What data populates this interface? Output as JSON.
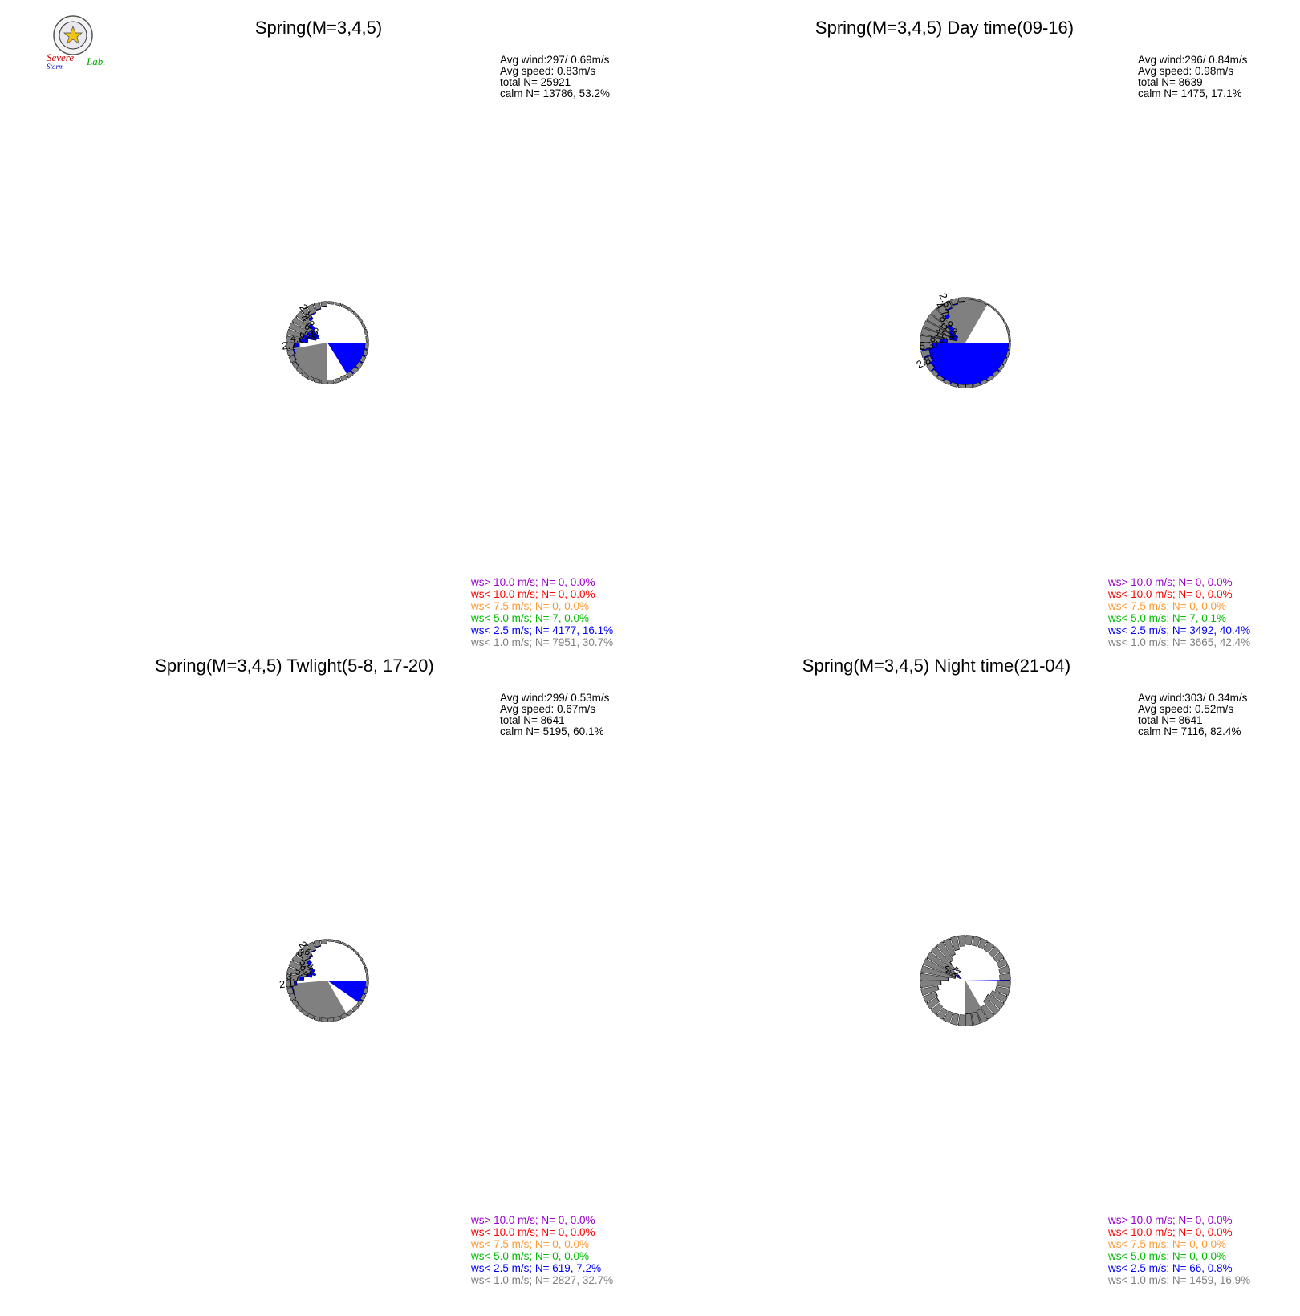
{
  "logo": {
    "text_line1": "Severe",
    "text_line2": "Storm",
    "text_line3": "Lab."
  },
  "legend_colors": {
    "gt10": "#9900cc",
    "lt10": "#ff0000",
    "lt7_5": "#ff9933",
    "lt5": "#00bb00",
    "lt2_5": "#0000ff",
    "lt1": "#808080"
  },
  "chart_data": [
    {
      "type": "polar-bar",
      "title": "Spring(M=3,4,5)",
      "rmax": 9,
      "rings": [
        3,
        6,
        9
      ],
      "stats": {
        "avg_wind": "Avg wind:297/ 0.69m/s",
        "avg_speed": "Avg speed: 0.83m/s",
        "total": "total N=       25921",
        "calm": "calm N=  13786,  53.2%"
      },
      "legend": [
        "ws> 10.0 m/s; N=     0,  0.0%",
        "ws< 10.0 m/s; N=     0,  0.0%",
        "ws<  7.5 m/s; N=     0,  0.0%",
        "ws<  5.0 m/s; N=     7,  0.0%",
        "ws<  2.5 m/s; N=  4177, 16.1%",
        "ws<  1.0 m/s; N=  7951, 30.7%"
      ],
      "bars": [
        {
          "dir": 5,
          "total": 0.3,
          "blue": 0.0
        },
        {
          "dir": 15,
          "total": 0.3,
          "blue": 0.0
        },
        {
          "dir": 25,
          "total": 0.3,
          "blue": 0.0
        },
        {
          "dir": 35,
          "total": 0.3,
          "blue": 0.0
        },
        {
          "dir": 45,
          "total": 0.3,
          "blue": 0.0
        },
        {
          "dir": 55,
          "total": 0.3,
          "blue": 0.0
        },
        {
          "dir": 65,
          "total": 0.3,
          "blue": 0.0
        },
        {
          "dir": 75,
          "total": 0.3,
          "blue": 0.0
        },
        {
          "dir": 85,
          "total": 0.3,
          "blue": 0.0
        },
        {
          "dir": 95,
          "total": 0.5,
          "blue": 0.0
        },
        {
          "dir": 105,
          "total": 0.55,
          "blue": 0.0
        },
        {
          "dir": 115,
          "total": 0.65,
          "blue": 0.0
        },
        {
          "dir": 125,
          "total": 0.75,
          "blue": 0.0
        },
        {
          "dir": 135,
          "total": 0.8,
          "blue": 0.0
        },
        {
          "dir": 145,
          "total": 0.8,
          "blue": 0.0
        },
        {
          "dir": 155,
          "total": 0.75,
          "blue": 0.0
        },
        {
          "dir": 165,
          "total": 0.65,
          "blue": 0.0
        },
        {
          "dir": 175,
          "total": 0.6,
          "blue": 0.0
        },
        {
          "dir": 185,
          "total": 0.55,
          "blue": 0.0
        },
        {
          "dir": 195,
          "total": 0.55,
          "blue": 0.0
        },
        {
          "dir": 205,
          "total": 0.5,
          "blue": 0.0
        },
        {
          "dir": 215,
          "total": 0.5,
          "blue": 0.0
        },
        {
          "dir": 225,
          "total": 0.6,
          "blue": 0.0
        },
        {
          "dir": 235,
          "total": 0.75,
          "blue": 0.1
        },
        {
          "dir": 245,
          "total": 1.05,
          "blue": 0.15
        },
        {
          "dir": 255,
          "total": 1.45,
          "blue": 0.3
        },
        {
          "dir": 265,
          "total": 2.7,
          "blue": 1.2,
          "label": "2.7"
        },
        {
          "dir": 275,
          "total": 4.6,
          "blue": 2.0,
          "label": "4.6"
        },
        {
          "dir": 285,
          "total": 6.4,
          "blue": 2.9,
          "label": "6.4"
        },
        {
          "dir": 295,
          "total": 7.0,
          "blue": 2.9,
          "label": "7.0"
        },
        {
          "dir": 305,
          "total": 6.6,
          "blue": 2.3,
          "label": "6.6"
        },
        {
          "dir": 315,
          "total": 4.8,
          "blue": 1.4,
          "label": "4.8"
        },
        {
          "dir": 325,
          "total": 2.8,
          "blue": 0.6,
          "label": "2.8"
        },
        {
          "dir": 335,
          "total": 1.9,
          "blue": 0.2
        },
        {
          "dir": 345,
          "total": 1.35,
          "blue": 0.15
        },
        {
          "dir": 355,
          "total": 0.85,
          "blue": 0.1
        }
      ]
    },
    {
      "type": "polar-bar",
      "title": "Spring(M=3,4,5) Day time(09-16)",
      "rmax": 15,
      "rings": [
        5,
        10,
        15
      ],
      "stats": {
        "avg_wind": "Avg wind:296/ 0.84m/s",
        "avg_speed": "Avg speed: 0.98m/s",
        "total": "total N=         8639",
        "calm": "calm N=   1475,  17.1%"
      },
      "legend": [
        "ws> 10.0 m/s; N=     0,  0.0%",
        "ws< 10.0 m/s; N=     0,  0.0%",
        "ws<  7.5 m/s; N=     0,  0.0%",
        "ws<  5.0 m/s; N=     7,  0.1%",
        "ws<  2.5 m/s; N=  3492, 40.4%",
        "ws<  1.0 m/s; N=  3665, 42.4%"
      ],
      "bars": [
        {
          "dir": 5,
          "total": 0.2,
          "blue": 0.0
        },
        {
          "dir": 15,
          "total": 0.2,
          "blue": 0.0
        },
        {
          "dir": 25,
          "total": 0.2,
          "blue": 0.0
        },
        {
          "dir": 35,
          "total": 0.2,
          "blue": 0.0
        },
        {
          "dir": 45,
          "total": 0.2,
          "blue": 0.0
        },
        {
          "dir": 55,
          "total": 0.2,
          "blue": 0.0
        },
        {
          "dir": 65,
          "total": 0.2,
          "blue": 0.0
        },
        {
          "dir": 75,
          "total": 0.2,
          "blue": 0.0
        },
        {
          "dir": 85,
          "total": 0.2,
          "blue": 0.0
        },
        {
          "dir": 95,
          "total": 0.3,
          "blue": 0.0
        },
        {
          "dir": 105,
          "total": 0.4,
          "blue": 0.0
        },
        {
          "dir": 115,
          "total": 0.6,
          "blue": 0.0
        },
        {
          "dir": 125,
          "total": 0.7,
          "blue": 0.0
        },
        {
          "dir": 135,
          "total": 0.8,
          "blue": 0.0
        },
        {
          "dir": 145,
          "total": 0.8,
          "blue": 0.0
        },
        {
          "dir": 155,
          "total": 0.75,
          "blue": 0.0
        },
        {
          "dir": 165,
          "total": 0.7,
          "blue": 0.0
        },
        {
          "dir": 175,
          "total": 0.7,
          "blue": 0.0
        },
        {
          "dir": 185,
          "total": 0.7,
          "blue": 0.0
        },
        {
          "dir": 195,
          "total": 0.75,
          "blue": 0.0
        },
        {
          "dir": 205,
          "total": 0.8,
          "blue": 0.0
        },
        {
          "dir": 215,
          "total": 0.9,
          "blue": 0.05
        },
        {
          "dir": 225,
          "total": 1.1,
          "blue": 0.1
        },
        {
          "dir": 235,
          "total": 1.8,
          "blue": 0.3
        },
        {
          "dir": 245,
          "total": 2.8,
          "blue": 0.6,
          "label": "2.8"
        },
        {
          "dir": 255,
          "total": 3.3,
          "blue": 0.9
        },
        {
          "dir": 265,
          "total": 5.3,
          "blue": 1.5,
          "label": "5.3"
        },
        {
          "dir": 275,
          "total": 8.9,
          "blue": 2.5,
          "label": "8.9"
        },
        {
          "dir": 285,
          "total": 11.9,
          "blue": 2.4,
          "label": "11.9"
        },
        {
          "dir": 295,
          "total": 12.1,
          "blue": 2.8,
          "label": "12.1"
        },
        {
          "dir": 305,
          "total": 11.8,
          "blue": 3.4,
          "label": "11.8"
        },
        {
          "dir": 315,
          "total": 8.9,
          "blue": 2.2,
          "label": "8.9"
        },
        {
          "dir": 325,
          "total": 4.7,
          "blue": 1.1,
          "label": "4.7"
        },
        {
          "dir": 335,
          "total": 2.5,
          "blue": 0.4,
          "label": "2.5"
        },
        {
          "dir": 345,
          "total": 1.7,
          "blue": 0.3
        },
        {
          "dir": 355,
          "total": 1.0,
          "blue": 0.1
        }
      ]
    },
    {
      "type": "polar-bar",
      "title": "Spring(M=3,4,5) Twlight(5-8, 17-20)",
      "rmax": 9,
      "rings": [
        3,
        6,
        9
      ],
      "stats": {
        "avg_wind": "Avg wind:299/ 0.53m/s",
        "avg_speed": "Avg speed: 0.67m/s",
        "total": "total N=         8641",
        "calm": "calm N=   5195,  60.1%"
      },
      "legend": [
        "ws> 10.0 m/s; N=     0,  0.0%",
        "ws< 10.0 m/s; N=     0,  0.0%",
        "ws<  7.5 m/s; N=     0,  0.0%",
        "ws<  5.0 m/s; N=     0,  0.0%",
        "ws<  2.5 m/s; N=   619,  7.2%",
        "ws<  1.0 m/s; N=  2827, 32.7%"
      ],
      "bars": [
        {
          "dir": 5,
          "total": 0.2,
          "blue": 0.0
        },
        {
          "dir": 15,
          "total": 0.2,
          "blue": 0.0
        },
        {
          "dir": 25,
          "total": 0.2,
          "blue": 0.0
        },
        {
          "dir": 35,
          "total": 0.2,
          "blue": 0.0
        },
        {
          "dir": 45,
          "total": 0.2,
          "blue": 0.0
        },
        {
          "dir": 55,
          "total": 0.2,
          "blue": 0.0
        },
        {
          "dir": 65,
          "total": 0.2,
          "blue": 0.0
        },
        {
          "dir": 75,
          "total": 0.2,
          "blue": 0.0
        },
        {
          "dir": 85,
          "total": 0.2,
          "blue": 0.0
        },
        {
          "dir": 95,
          "total": 0.4,
          "blue": 0.0
        },
        {
          "dir": 105,
          "total": 0.45,
          "blue": 0.0
        },
        {
          "dir": 115,
          "total": 0.5,
          "blue": 0.0
        },
        {
          "dir": 125,
          "total": 0.55,
          "blue": 0.0
        },
        {
          "dir": 135,
          "total": 0.6,
          "blue": 0.0
        },
        {
          "dir": 145,
          "total": 0.6,
          "blue": 0.0
        },
        {
          "dir": 155,
          "total": 0.6,
          "blue": 0.0
        },
        {
          "dir": 165,
          "total": 0.55,
          "blue": 0.0
        },
        {
          "dir": 175,
          "total": 0.5,
          "blue": 0.0
        },
        {
          "dir": 185,
          "total": 0.5,
          "blue": 0.0
        },
        {
          "dir": 195,
          "total": 0.5,
          "blue": 0.0
        },
        {
          "dir": 205,
          "total": 0.5,
          "blue": 0.0
        },
        {
          "dir": 215,
          "total": 0.5,
          "blue": 0.0
        },
        {
          "dir": 225,
          "total": 0.55,
          "blue": 0.0
        },
        {
          "dir": 235,
          "total": 0.7,
          "blue": 0.05
        },
        {
          "dir": 245,
          "total": 0.95,
          "blue": 0.1
        },
        {
          "dir": 255,
          "total": 1.1,
          "blue": 0.2
        },
        {
          "dir": 265,
          "total": 2.1,
          "blue": 0.6,
          "label": "2.1"
        },
        {
          "dir": 275,
          "total": 3.7,
          "blue": 0.9,
          "label": "3.7"
        },
        {
          "dir": 285,
          "total": 5.4,
          "blue": 1.3,
          "label": "5.4"
        },
        {
          "dir": 295,
          "total": 6.1,
          "blue": 1.5,
          "label": "6.1"
        },
        {
          "dir": 305,
          "total": 5.4,
          "blue": 1.2,
          "label": "5.4"
        },
        {
          "dir": 315,
          "total": 3.7,
          "blue": 0.8,
          "label": "3.7"
        },
        {
          "dir": 325,
          "total": 2.6,
          "blue": 0.4,
          "label": "2.6"
        },
        {
          "dir": 335,
          "total": 1.8,
          "blue": 0.2
        },
        {
          "dir": 345,
          "total": 1.2,
          "blue": 0.15
        },
        {
          "dir": 355,
          "total": 0.75,
          "blue": 0.05
        }
      ]
    },
    {
      "type": "polar-bar",
      "title": "Spring(M=3,4,5) Night time(21-04)",
      "rmax": 3,
      "rings": [
        1,
        2,
        3
      ],
      "stats": {
        "avg_wind": "Avg wind:303/ 0.34m/s",
        "avg_speed": "Avg speed: 0.52m/s",
        "total": "total N=         8641",
        "calm": "calm N=   7116,  82.4%"
      },
      "legend": [
        "ws> 10.0 m/s; N=     0,  0.0%",
        "ws< 10.0 m/s; N=     0,  0.0%",
        "ws<  7.5 m/s; N=     0,  0.0%",
        "ws<  5.0 m/s; N=     0,  0.0%",
        "ws<  2.5 m/s; N=    66,  0.8%",
        "ws<  1.0 m/s; N=  1459, 16.9%"
      ],
      "bars": [
        {
          "dir": 5,
          "total": 0.55,
          "blue": 0.0
        },
        {
          "dir": 15,
          "total": 0.55,
          "blue": 0.0
        },
        {
          "dir": 25,
          "total": 0.55,
          "blue": 0.0
        },
        {
          "dir": 35,
          "total": 0.55,
          "blue": 0.0
        },
        {
          "dir": 45,
          "total": 0.55,
          "blue": 0.0
        },
        {
          "dir": 55,
          "total": 0.55,
          "blue": 0.0
        },
        {
          "dir": 65,
          "total": 0.55,
          "blue": 0.0
        },
        {
          "dir": 75,
          "total": 0.6,
          "blue": 0.0
        },
        {
          "dir": 85,
          "total": 0.65,
          "blue": 0.0
        },
        {
          "dir": 95,
          "total": 0.85,
          "blue": 0.0
        },
        {
          "dir": 105,
          "total": 0.85,
          "blue": 0.0
        },
        {
          "dir": 115,
          "total": 1.05,
          "blue": 0.0
        },
        {
          "dir": 125,
          "total": 1.2,
          "blue": 0.01
        },
        {
          "dir": 135,
          "total": 1.15,
          "blue": 0.01
        },
        {
          "dir": 145,
          "total": 0.9,
          "blue": 0.0
        },
        {
          "dir": 155,
          "total": 0.8,
          "blue": 0.0
        },
        {
          "dir": 165,
          "total": 0.75,
          "blue": 0.0
        },
        {
          "dir": 175,
          "total": 0.75,
          "blue": 0.02
        },
        {
          "dir": 185,
          "total": 0.65,
          "blue": 0.0
        },
        {
          "dir": 195,
          "total": 0.65,
          "blue": 0.0
        },
        {
          "dir": 205,
          "total": 0.65,
          "blue": 0.0
        },
        {
          "dir": 215,
          "total": 0.6,
          "blue": 0.0
        },
        {
          "dir": 225,
          "total": 0.65,
          "blue": 0.0
        },
        {
          "dir": 235,
          "total": 0.75,
          "blue": 0.02
        },
        {
          "dir": 245,
          "total": 0.85,
          "blue": 0.02
        },
        {
          "dir": 255,
          "total": 1.1,
          "blue": 0.02
        },
        {
          "dir": 265,
          "total": 1.35,
          "blue": 0.02
        },
        {
          "dir": 275,
          "total": 1.85,
          "blue": 0.03
        },
        {
          "dir": 285,
          "total": 2.3,
          "blue": 0.05
        },
        {
          "dir": 295,
          "total": 2.7,
          "blue": 0.15,
          "label": "2.7"
        },
        {
          "dir": 305,
          "total": 2.5,
          "blue": 0.12,
          "label": "2.5"
        },
        {
          "dir": 315,
          "total": 1.95,
          "blue": 0.05
        },
        {
          "dir": 325,
          "total": 1.4,
          "blue": 0.03
        },
        {
          "dir": 335,
          "total": 1.1,
          "blue": 0.02
        },
        {
          "dir": 345,
          "total": 0.85,
          "blue": 0.01
        },
        {
          "dir": 355,
          "total": 0.65,
          "blue": 0.0
        }
      ]
    }
  ]
}
